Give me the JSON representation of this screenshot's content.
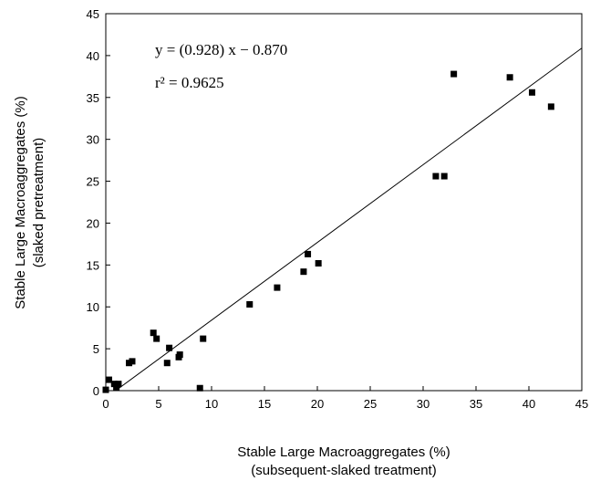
{
  "chart_data": {
    "type": "scatter",
    "title": "",
    "xlabel_line1": "Stable Large Macroaggregates (%)",
    "xlabel_line2": "(subsequent-slaked treatment)",
    "ylabel_line1": "Stable Large Macroaggregates (%)",
    "ylabel_line2": "(slaked pretreatment)",
    "xlim": [
      0,
      45
    ],
    "ylim": [
      0,
      45
    ],
    "xticks": [
      0,
      5,
      10,
      15,
      20,
      25,
      30,
      35,
      40,
      45
    ],
    "yticks": [
      0,
      5,
      10,
      15,
      20,
      25,
      30,
      35,
      40,
      45
    ],
    "grid": false,
    "annotation": {
      "equation": "y = (0.928) x − 0.870",
      "r_squared": "r² = 0.9625"
    },
    "fit_line": {
      "slope": 0.928,
      "intercept": -0.87
    },
    "points": [
      [
        0.0,
        0.1
      ],
      [
        0.3,
        1.3
      ],
      [
        0.8,
        0.8
      ],
      [
        1.0,
        0.4
      ],
      [
        1.2,
        0.8
      ],
      [
        2.2,
        3.3
      ],
      [
        2.5,
        3.5
      ],
      [
        4.5,
        6.9
      ],
      [
        4.8,
        6.2
      ],
      [
        5.8,
        3.3
      ],
      [
        6.0,
        5.1
      ],
      [
        6.9,
        4.0
      ],
      [
        7.0,
        4.3
      ],
      [
        8.9,
        0.3
      ],
      [
        9.2,
        6.2
      ],
      [
        13.6,
        10.3
      ],
      [
        16.2,
        12.3
      ],
      [
        18.7,
        14.2
      ],
      [
        19.1,
        16.3
      ],
      [
        20.1,
        15.2
      ],
      [
        31.2,
        25.6
      ],
      [
        32.0,
        25.6
      ],
      [
        32.9,
        37.8
      ],
      [
        38.2,
        37.4
      ],
      [
        40.3,
        35.6
      ],
      [
        42.1,
        33.9
      ]
    ],
    "color": "#000000"
  }
}
